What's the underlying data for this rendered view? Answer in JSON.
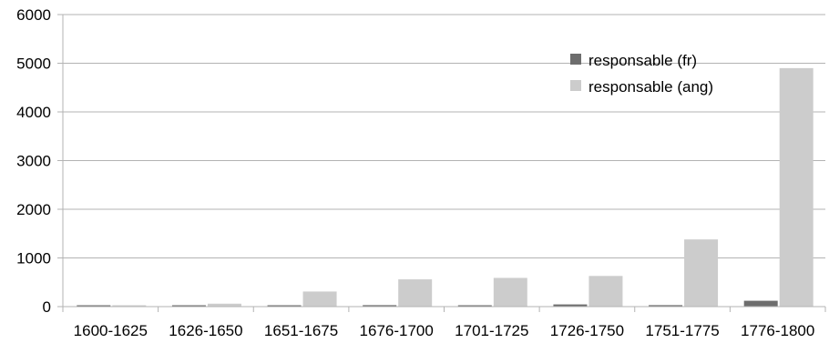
{
  "chart_data": {
    "type": "bar",
    "categories": [
      "1600-1625",
      "1626-1650",
      "1651-1675",
      "1676-1700",
      "1701-1725",
      "1726-1750",
      "1751-1775",
      "1776-1800"
    ],
    "series": [
      {
        "name": "responsable (fr)",
        "color": "#6d6d6d",
        "values": [
          2,
          10,
          8,
          30,
          12,
          45,
          30,
          120
        ]
      },
      {
        "name": "responsable (ang)",
        "color": "#cccccc",
        "values": [
          3,
          60,
          310,
          560,
          590,
          630,
          1380,
          4900
        ]
      }
    ],
    "yticks": [
      0,
      1000,
      2000,
      3000,
      4000,
      5000,
      6000
    ],
    "ylim": [
      0,
      6000
    ],
    "grid": true,
    "legend_position": "top-right"
  }
}
